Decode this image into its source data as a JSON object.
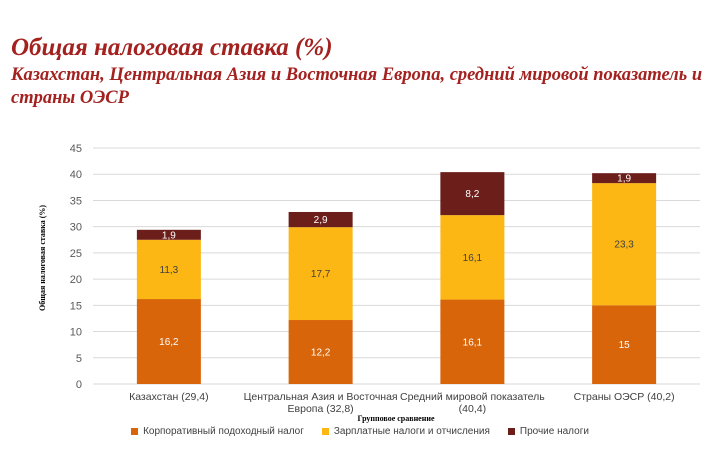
{
  "title": "Общая налоговая ставка (%)",
  "subtitle": "Казахстан, Центральная Азия и Восточная Европа, средний мировой показатель и страны ОЭСР",
  "chart_data": {
    "type": "bar",
    "stacked": true,
    "categories": [
      [
        "Казахстан (29,4)"
      ],
      [
        "Центральная Азия и Восточная",
        "Европа (32,8)"
      ],
      [
        "Средний мировой показатель",
        "(40,4)"
      ],
      [
        "Страны ОЭСР (40,2)"
      ]
    ],
    "series": [
      {
        "name": "Корпоративный подоходный налог",
        "color": "#d9650a",
        "label_color": "#ffffff",
        "values": [
          16.2,
          12.2,
          16.1,
          15
        ],
        "labels": [
          "16,2",
          "12,2",
          "16,1",
          "15"
        ]
      },
      {
        "name": "Зарплатные налоги и отчисления",
        "color": "#fdb714",
        "label_color": "#404040",
        "values": [
          11.3,
          17.7,
          16.1,
          23.3
        ],
        "labels": [
          "11,3",
          "17,7",
          "16,1",
          "23,3"
        ]
      },
      {
        "name": "Прочие налоги",
        "color": "#6b1e1a",
        "label_color": "#ffffff",
        "values": [
          1.9,
          2.9,
          8.2,
          1.9
        ],
        "labels": [
          "1,9",
          "2,9",
          "8,2",
          "1,9"
        ]
      }
    ],
    "xlabel": "Групповое сравнение",
    "ylabel": "Общая налоговая ставка (%)",
    "ylim": [
      0,
      45
    ],
    "yticks": [
      0,
      5,
      10,
      15,
      20,
      25,
      30,
      35,
      40,
      45
    ],
    "grid": true,
    "legend_position": "bottom"
  }
}
